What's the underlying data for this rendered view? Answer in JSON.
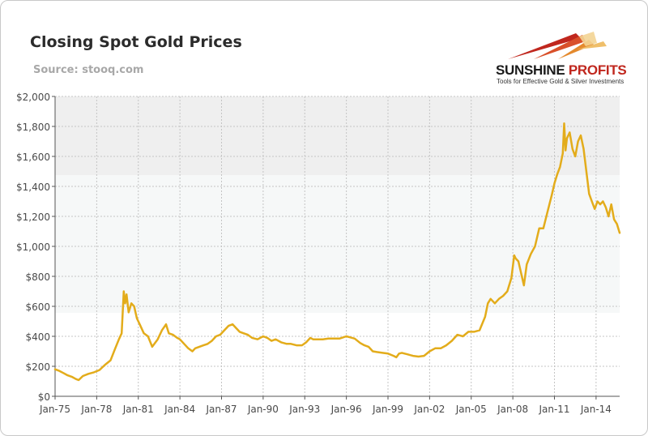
{
  "header": {
    "title": "Closing Spot Gold Prices",
    "source": "Source: stooq.com"
  },
  "logo": {
    "name_part1": "SUNSHINE",
    "name_part2": " PROFITS",
    "tagline": "Tools for Effective Gold & Silver Investments"
  },
  "colors": {
    "line": "#e3ac1b",
    "grid": "#c4c4c4",
    "band_top": "#efefef",
    "band_middle": "#f6f8f8",
    "logo_accent": "#c0271e"
  },
  "chart_data": {
    "type": "line",
    "title": "Closing Spot Gold Prices",
    "subtitle": "Source: stooq.com",
    "xlabel": "",
    "ylabel": "",
    "x_unit": "year",
    "xlim": [
      1975.0,
      2015.7
    ],
    "ylim": [
      0,
      2000
    ],
    "grid": true,
    "legend": "none",
    "x_ticks": [
      {
        "value": 1975,
        "label": "Jan-75"
      },
      {
        "value": 1978,
        "label": "Jan-78"
      },
      {
        "value": 1981,
        "label": "Jan-81"
      },
      {
        "value": 1984,
        "label": "Jan-84"
      },
      {
        "value": 1987,
        "label": "Jan-87"
      },
      {
        "value": 1990,
        "label": "Jan-90"
      },
      {
        "value": 1993,
        "label": "Jan-93"
      },
      {
        "value": 1996,
        "label": "Jan-96"
      },
      {
        "value": 1999,
        "label": "Jan-99"
      },
      {
        "value": 2002,
        "label": "Jan-02"
      },
      {
        "value": 2005,
        "label": "Jan-05"
      },
      {
        "value": 2008,
        "label": "Jan-08"
      },
      {
        "value": 2011,
        "label": "Jan-11"
      },
      {
        "value": 2014,
        "label": "Jan-14"
      }
    ],
    "y_ticks": [
      {
        "value": 0,
        "label": "$0"
      },
      {
        "value": 200,
        "label": "$200"
      },
      {
        "value": 400,
        "label": "$400"
      },
      {
        "value": 600,
        "label": "$600"
      },
      {
        "value": 800,
        "label": "$800"
      },
      {
        "value": 1000,
        "label": "$1,000"
      },
      {
        "value": 1200,
        "label": "$1,200"
      },
      {
        "value": 1400,
        "label": "$1,400"
      },
      {
        "value": 1600,
        "label": "$1,600"
      },
      {
        "value": 1800,
        "label": "$1,800"
      },
      {
        "value": 2000,
        "label": "$2,000"
      }
    ],
    "series": [
      {
        "x": [
          1975.0,
          1975.3,
          1975.6,
          1975.9,
          1976.2,
          1976.5,
          1976.7,
          1977.0,
          1977.4,
          1977.8,
          1978.2,
          1978.6,
          1979.0,
          1979.3,
          1979.6,
          1979.8,
          1979.95,
          1980.05,
          1980.15,
          1980.3,
          1980.5,
          1980.7,
          1980.9,
          1981.1,
          1981.4,
          1981.7,
          1982.0,
          1982.4,
          1982.7,
          1983.0,
          1983.2,
          1983.5,
          1983.8,
          1984.0,
          1984.3,
          1984.6,
          1984.9,
          1985.1,
          1985.4,
          1985.7,
          1986.0,
          1986.3,
          1986.6,
          1986.9,
          1987.2,
          1987.5,
          1987.8,
          1988.0,
          1988.3,
          1988.6,
          1988.9,
          1989.2,
          1989.6,
          1990.0,
          1990.3,
          1990.6,
          1990.9,
          1991.3,
          1991.7,
          1992.0,
          1992.4,
          1992.8,
          1993.1,
          1993.4,
          1993.6,
          1993.9,
          1994.3,
          1994.7,
          1995.0,
          1995.5,
          1996.0,
          1996.2,
          1996.6,
          1997.0,
          1997.3,
          1997.6,
          1997.9,
          1998.2,
          1998.6,
          1999.0,
          1999.4,
          1999.6,
          1999.8,
          2000.0,
          2000.4,
          2000.8,
          2001.2,
          2001.6,
          2002.0,
          2002.4,
          2002.8,
          2003.2,
          2003.6,
          2004.0,
          2004.4,
          2004.8,
          2005.2,
          2005.6,
          2006.0,
          2006.2,
          2006.4,
          2006.7,
          2007.0,
          2007.3,
          2007.6,
          2007.9,
          2008.1,
          2008.2,
          2008.4,
          2008.6,
          2008.8,
          2009.0,
          2009.3,
          2009.6,
          2009.9,
          2010.2,
          2010.5,
          2010.8,
          2011.0,
          2011.2,
          2011.4,
          2011.6,
          2011.7,
          2011.8,
          2011.9,
          2012.1,
          2012.3,
          2012.5,
          2012.7,
          2012.9,
          2013.1,
          2013.3,
          2013.5,
          2013.7,
          2013.9,
          2014.1,
          2014.3,
          2014.5,
          2014.7,
          2014.9,
          2015.1,
          2015.3,
          2015.5,
          2015.7
        ],
        "y": [
          180,
          170,
          155,
          140,
          130,
          115,
          108,
          135,
          150,
          160,
          175,
          210,
          240,
          310,
          380,
          420,
          700,
          620,
          680,
          560,
          620,
          600,
          520,
          480,
          420,
          400,
          330,
          380,
          440,
          480,
          420,
          410,
          390,
          380,
          350,
          320,
          300,
          320,
          330,
          340,
          350,
          370,
          400,
          410,
          440,
          470,
          480,
          460,
          430,
          420,
          410,
          390,
          380,
          400,
          390,
          370,
          380,
          360,
          350,
          350,
          340,
          340,
          360,
          390,
          380,
          380,
          380,
          385,
          385,
          385,
          400,
          395,
          385,
          355,
          340,
          330,
          300,
          295,
          290,
          285,
          270,
          260,
          285,
          290,
          280,
          270,
          265,
          270,
          300,
          320,
          320,
          340,
          370,
          410,
          400,
          430,
          430,
          440,
          530,
          620,
          650,
          620,
          650,
          670,
          700,
          790,
          940,
          920,
          900,
          820,
          740,
          880,
          950,
          1000,
          1120,
          1120,
          1230,
          1340,
          1420,
          1480,
          1530,
          1620,
          1820,
          1640,
          1720,
          1760,
          1650,
          1600,
          1700,
          1740,
          1650,
          1500,
          1350,
          1300,
          1250,
          1300,
          1280,
          1300,
          1260,
          1200,
          1280,
          1180,
          1150,
          1090
        ]
      }
    ]
  }
}
